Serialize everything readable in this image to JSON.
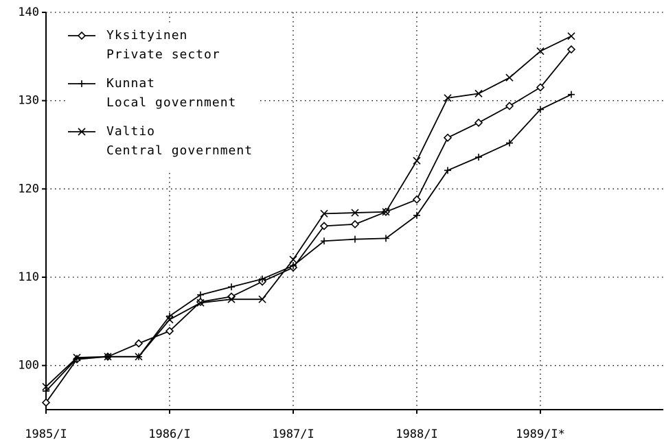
{
  "chart_data": {
    "type": "line",
    "categories": [
      "1985/I",
      null,
      null,
      null,
      "1986/I",
      null,
      null,
      null,
      "1987/I",
      null,
      null,
      null,
      "1988/I",
      null,
      null,
      null,
      "1989/I*",
      null,
      null,
      null,
      null
    ],
    "series": [
      {
        "name": "Yksityinen\nPrivate sector",
        "color": "#000000",
        "marker": "diamond",
        "values": [
          95.8,
          100.7,
          101.0,
          102.5,
          103.9,
          107.2,
          107.8,
          109.5,
          111.1,
          115.8,
          116.0,
          117.4,
          118.8,
          125.8,
          127.5,
          129.4,
          131.5,
          135.8,
          null,
          null,
          null
        ]
      },
      {
        "name": "Kunnat\nLocal government",
        "color": "#000000",
        "marker": "plus",
        "values": [
          97.1,
          100.8,
          101.0,
          101.0,
          105.6,
          108.0,
          108.9,
          109.8,
          111.3,
          114.1,
          114.3,
          114.4,
          117.0,
          122.1,
          123.6,
          125.2,
          129.0,
          130.7,
          null,
          null,
          null
        ]
      },
      {
        "name": "Valtio\nCentral government",
        "color": "#000000",
        "marker": "x",
        "values": [
          97.6,
          100.9,
          101.0,
          101.0,
          105.2,
          107.1,
          107.5,
          107.5,
          112.0,
          117.2,
          117.3,
          117.4,
          123.2,
          130.3,
          130.8,
          132.6,
          135.6,
          137.3,
          null,
          null,
          null
        ]
      }
    ],
    "ylim": [
      95,
      140
    ],
    "yticks": [
      100,
      110,
      120,
      130,
      140
    ],
    "grid": true,
    "legend": "top-left"
  }
}
